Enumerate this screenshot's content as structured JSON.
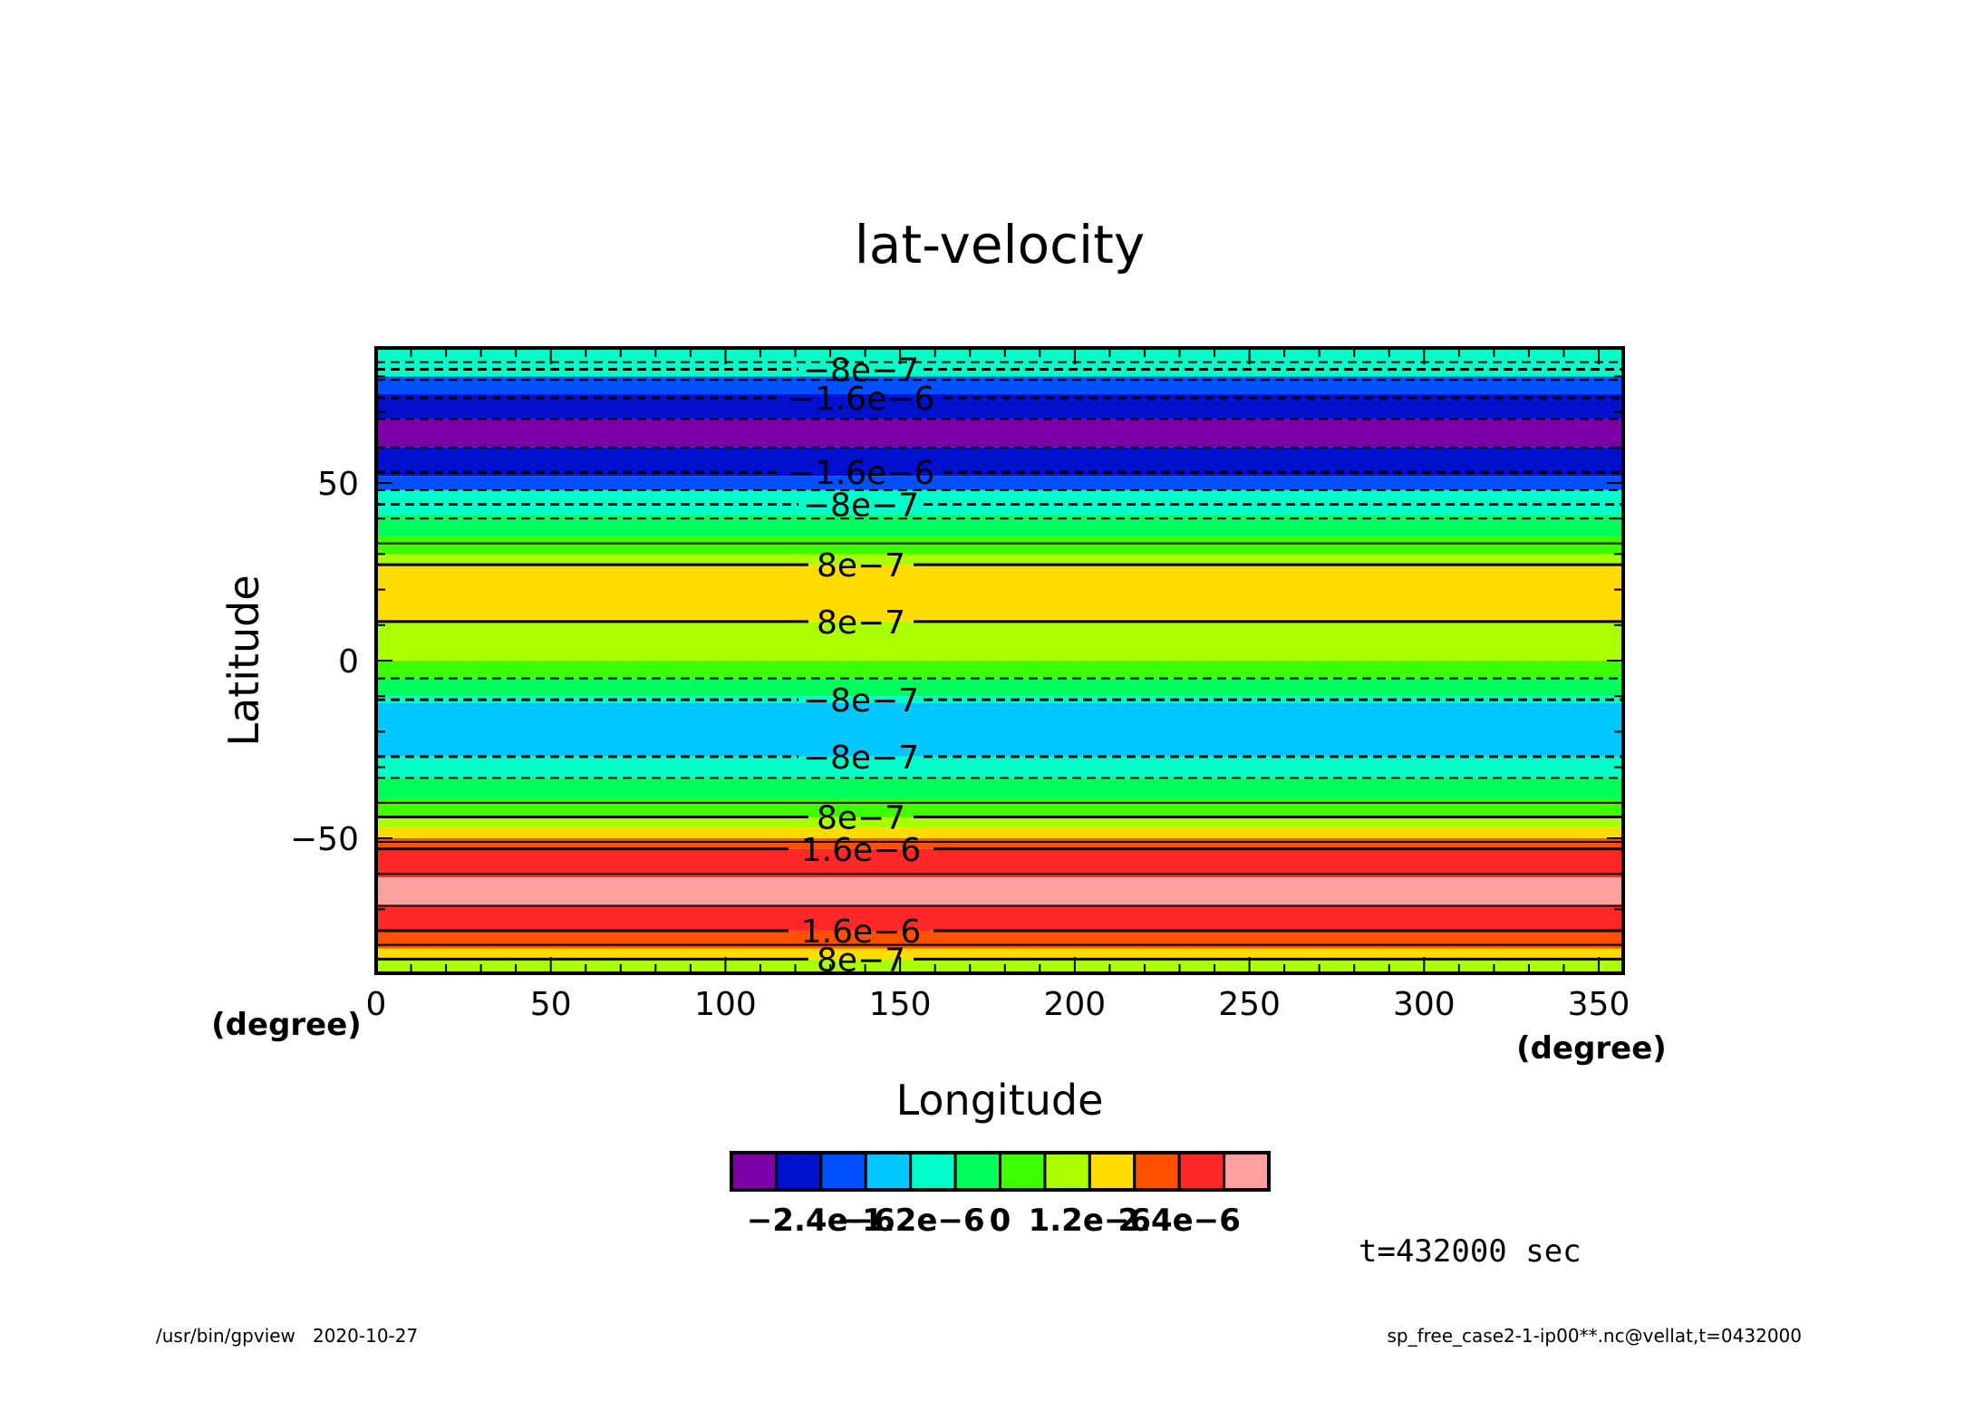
{
  "chart_data": {
    "type": "heatmap",
    "title": "lat-velocity",
    "xlabel": "Longitude",
    "ylabel": "Latitude",
    "x_unit": "(degree)",
    "xlim": [
      0,
      357
    ],
    "ylim": [
      -88,
      88
    ],
    "x_ticks": [
      0,
      50,
      100,
      150,
      200,
      250,
      300,
      350
    ],
    "x_tick_labels": [
      "0",
      "50",
      "100",
      "150",
      "200",
      "250",
      "300",
      "350"
    ],
    "y_ticks": [
      -50,
      0,
      50
    ],
    "y_tick_labels": [
      "−50",
      "0",
      "50"
    ],
    "time_label": "t=432000 sec",
    "colorbar": {
      "colors": [
        "#7b00a8",
        "#0010cc",
        "#0050ff",
        "#00c8ff",
        "#00ffc8",
        "#00ff5a",
        "#3cff00",
        "#aaff00",
        "#ffdc00",
        "#ff5000",
        "#ff2828",
        "#ffa0a0"
      ],
      "tick_values": [
        -2.4e-06,
        -1.2e-06,
        0,
        1.2e-06,
        2.4e-06
      ],
      "tick_labels": [
        "−2.4e−6",
        "−1.2e−6",
        "0",
        "1.2e−6",
        "2.4e−6"
      ]
    },
    "bands": [
      {
        "lat_bottom": 80,
        "lat_top": 88,
        "color": "#00ffc8"
      },
      {
        "lat_bottom": 75,
        "lat_top": 80,
        "color": "#0050ff"
      },
      {
        "lat_bottom": 68,
        "lat_top": 75,
        "color": "#0010cc"
      },
      {
        "lat_bottom": 60,
        "lat_top": 68,
        "color": "#7b00a8"
      },
      {
        "lat_bottom": 52,
        "lat_top": 60,
        "color": "#0010cc"
      },
      {
        "lat_bottom": 48,
        "lat_top": 52,
        "color": "#0050ff"
      },
      {
        "lat_bottom": 41,
        "lat_top": 48,
        "color": "#00ffc8"
      },
      {
        "lat_bottom": 35,
        "lat_top": 41,
        "color": "#00ff5a"
      },
      {
        "lat_bottom": 30,
        "lat_top": 35,
        "color": "#3cff00"
      },
      {
        "lat_bottom": 27,
        "lat_top": 30,
        "color": "#aaff00"
      },
      {
        "lat_bottom": 11,
        "lat_top": 27,
        "color": "#ffdc00"
      },
      {
        "lat_bottom": 0,
        "lat_top": 11,
        "color": "#aaff00"
      },
      {
        "lat_bottom": -5,
        "lat_top": 0,
        "color": "#3cff00"
      },
      {
        "lat_bottom": -10,
        "lat_top": -5,
        "color": "#00ff5a"
      },
      {
        "lat_bottom": -12,
        "lat_top": -10,
        "color": "#00ffc8"
      },
      {
        "lat_bottom": -27,
        "lat_top": -12,
        "color": "#00c8ff"
      },
      {
        "lat_bottom": -33,
        "lat_top": -27,
        "color": "#00ffc8"
      },
      {
        "lat_bottom": -39,
        "lat_top": -33,
        "color": "#00ff5a"
      },
      {
        "lat_bottom": -44,
        "lat_top": -39,
        "color": "#3cff00"
      },
      {
        "lat_bottom": -47,
        "lat_top": -44,
        "color": "#aaff00"
      },
      {
        "lat_bottom": -50,
        "lat_top": -47,
        "color": "#ffdc00"
      },
      {
        "lat_bottom": -53,
        "lat_top": -50,
        "color": "#ff5000"
      },
      {
        "lat_bottom": -61,
        "lat_top": -53,
        "color": "#ff2828"
      },
      {
        "lat_bottom": -69,
        "lat_top": -61,
        "color": "#ffa0a0"
      },
      {
        "lat_bottom": -76,
        "lat_top": -69,
        "color": "#ff2828"
      },
      {
        "lat_bottom": -81,
        "lat_top": -76,
        "color": "#ff5000"
      },
      {
        "lat_bottom": -84,
        "lat_top": -81,
        "color": "#ffdc00"
      },
      {
        "lat_bottom": -88,
        "lat_top": -84,
        "color": "#aaff00"
      }
    ],
    "contours": [
      {
        "lat": 84,
        "dashed": true,
        "label": ""
      },
      {
        "lat": 82,
        "dashed": true,
        "label": "−8e−7"
      },
      {
        "lat": 79,
        "dashed": true,
        "label": ""
      },
      {
        "lat": 74,
        "dashed": true,
        "label": "−1.6e−6"
      },
      {
        "lat": 68,
        "dashed": true,
        "label": ""
      },
      {
        "lat": 60,
        "dashed": true,
        "label": ""
      },
      {
        "lat": 53,
        "dashed": true,
        "label": "−1.6e−6"
      },
      {
        "lat": 48,
        "dashed": true,
        "label": ""
      },
      {
        "lat": 44,
        "dashed": true,
        "label": "−8e−7"
      },
      {
        "lat": 40,
        "dashed": true,
        "label": ""
      },
      {
        "lat": 33,
        "dashed": false,
        "label": ""
      },
      {
        "lat": 27,
        "dashed": false,
        "label": "8e−7"
      },
      {
        "lat": 11,
        "dashed": false,
        "label": "8e−7"
      },
      {
        "lat": -5,
        "dashed": true,
        "label": ""
      },
      {
        "lat": -11,
        "dashed": true,
        "label": "−8e−7"
      },
      {
        "lat": -27,
        "dashed": true,
        "label": "−8e−7"
      },
      {
        "lat": -33,
        "dashed": true,
        "label": ""
      },
      {
        "lat": -40,
        "dashed": false,
        "label": ""
      },
      {
        "lat": -44,
        "dashed": false,
        "label": "8e−7"
      },
      {
        "lat": -51,
        "dashed": false,
        "label": ""
      },
      {
        "lat": -53,
        "dashed": false,
        "label": "1.6e−6"
      },
      {
        "lat": -60,
        "dashed": false,
        "label": ""
      },
      {
        "lat": -69,
        "dashed": false,
        "label": ""
      },
      {
        "lat": -76,
        "dashed": false,
        "label": "1.6e−6"
      },
      {
        "lat": -80,
        "dashed": false,
        "label": ""
      },
      {
        "lat": -84,
        "dashed": false,
        "label": "8e−7"
      }
    ]
  },
  "footer": {
    "left": "/usr/bin/gpview   2020-10-27",
    "right": "sp_free_case2-1-ip00**.nc@vellat,t=0432000"
  }
}
